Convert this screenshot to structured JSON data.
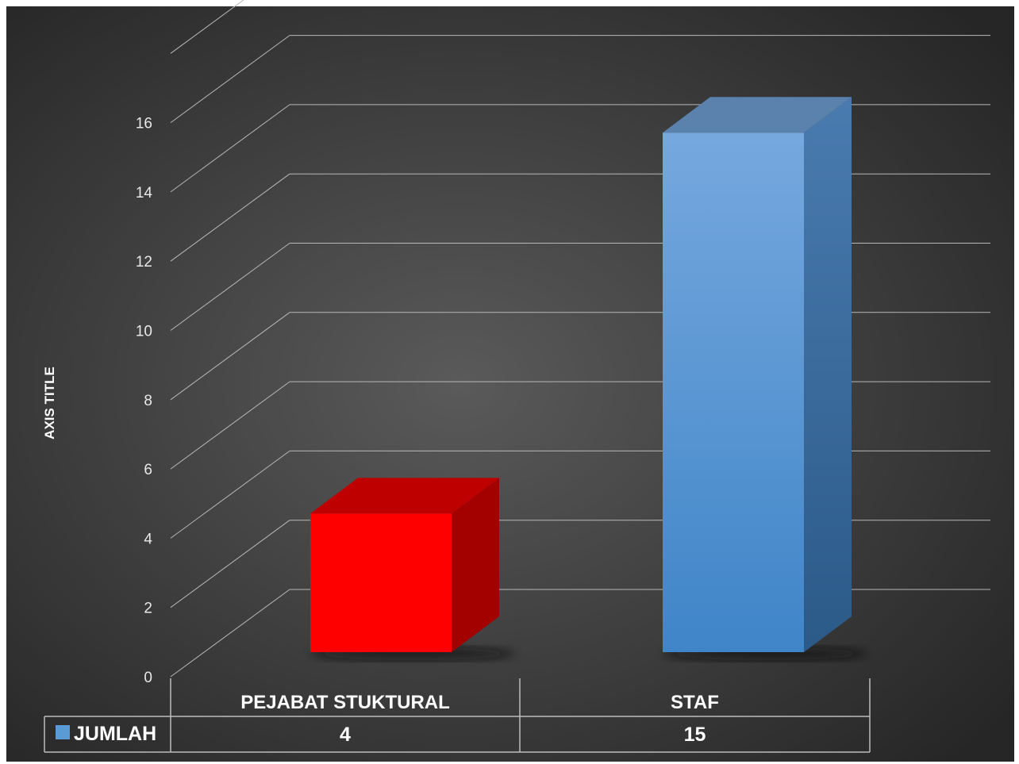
{
  "chart_data": {
    "type": "bar",
    "categories": [
      "PEJABAT STUKTURAL",
      "STAF"
    ],
    "series": [
      {
        "name": "JUMLAH",
        "values": [
          4,
          15
        ]
      }
    ],
    "ylabel": "AXIS TITLE",
    "xlabel": "",
    "ylim": [
      0,
      16
    ],
    "yticks": [
      0,
      2,
      4,
      6,
      8,
      10,
      12,
      14,
      16
    ],
    "grid": true,
    "legend": "data-table",
    "colors": {
      "background": "#3e3e3e",
      "gridline": "#b8b8b8",
      "bar_front": [
        "#ff0000",
        "#5b9bd5"
      ],
      "legend_key": "#5b9bd5"
    }
  }
}
